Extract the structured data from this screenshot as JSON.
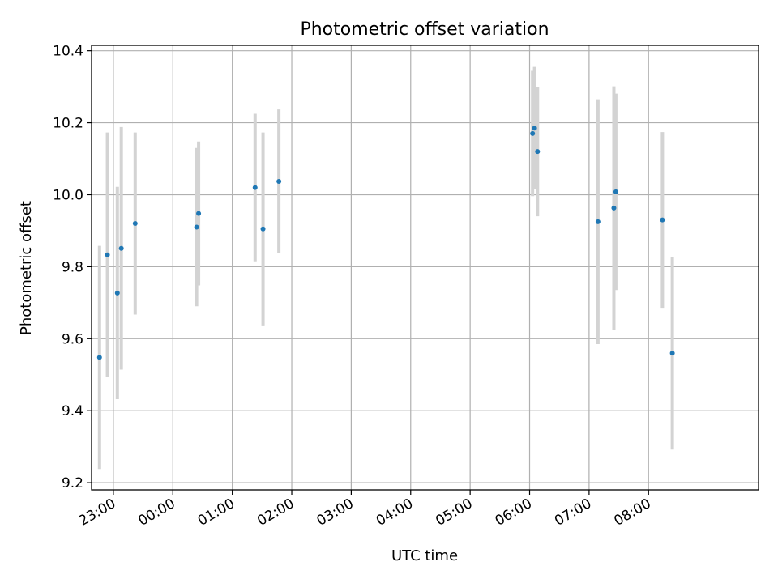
{
  "chart_data": {
    "type": "scatter",
    "title": "Photometric offset variation",
    "xlabel": "UTC time",
    "ylabel": "Photometric offset",
    "x_unit": "UTC time of day",
    "xlim": [
      "22:38",
      "09:51"
    ],
    "ylim": [
      9.18,
      10.415
    ],
    "x_ticks": [
      "23:00",
      "00:00",
      "01:00",
      "02:00",
      "03:00",
      "04:00",
      "05:00",
      "06:00",
      "07:00",
      "08:00"
    ],
    "y_ticks": [
      "9.2",
      "9.4",
      "9.6",
      "9.8",
      "10.0",
      "10.2",
      "10.4"
    ],
    "grid": true,
    "legend": "none",
    "point_color": "#1f77b4",
    "errorbar_color": "#d3d3d3",
    "points": [
      {
        "x": "22:46",
        "y": 9.548,
        "err": 0.31
      },
      {
        "x": "22:54",
        "y": 9.833,
        "err": 0.34
      },
      {
        "x": "23:04",
        "y": 9.727,
        "err": 0.295
      },
      {
        "x": "23:08",
        "y": 9.851,
        "err": 0.337
      },
      {
        "x": "23:22",
        "y": 9.92,
        "err": 0.253
      },
      {
        "x": "00:24",
        "y": 9.91,
        "err": 0.22
      },
      {
        "x": "00:26",
        "y": 9.948,
        "err": 0.2
      },
      {
        "x": "01:23",
        "y": 10.02,
        "err": 0.205
      },
      {
        "x": "01:31",
        "y": 9.905,
        "err": 0.268
      },
      {
        "x": "01:47",
        "y": 10.037,
        "err": 0.2
      },
      {
        "x": "06:03",
        "y": 10.17,
        "err": 0.174
      },
      {
        "x": "06:05",
        "y": 10.185,
        "err": 0.17
      },
      {
        "x": "06:08",
        "y": 10.12,
        "err": 0.18
      },
      {
        "x": "07:09",
        "y": 9.925,
        "err": 0.34
      },
      {
        "x": "07:25",
        "y": 9.963,
        "err": 0.338
      },
      {
        "x": "07:27",
        "y": 10.008,
        "err": 0.273
      },
      {
        "x": "08:14",
        "y": 9.93,
        "err": 0.244
      },
      {
        "x": "08:24",
        "y": 9.56,
        "err": 0.268
      }
    ]
  }
}
